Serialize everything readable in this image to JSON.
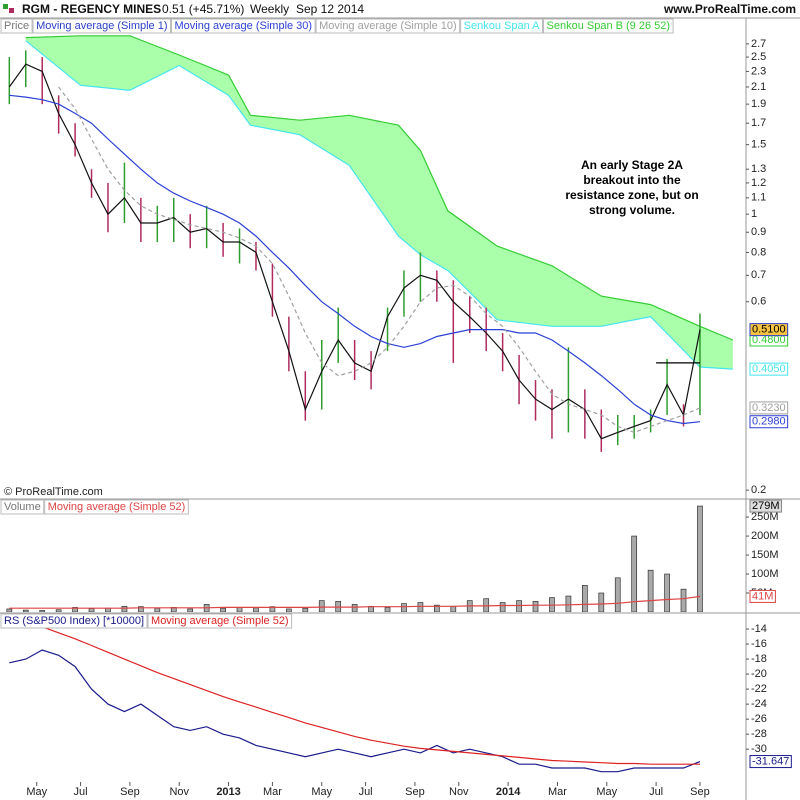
{
  "header": {
    "symbol": "RGM - REGENCY MINES",
    "quote": "0.51 (+45.71%)",
    "period": "Weekly",
    "date": "Sep 12 2014",
    "site": "www.ProRealTime.com",
    "copyright": "© ProRealTime.com"
  },
  "chart_data": [
    {
      "type": "line",
      "legend_title": "Price",
      "log": true,
      "x": [
        1,
        4,
        7,
        10,
        13,
        16,
        19,
        22,
        25,
        28,
        31,
        34,
        37,
        40,
        43,
        46,
        49,
        52,
        55,
        58,
        61,
        64,
        67,
        70,
        73,
        76,
        79,
        82,
        85,
        88,
        91,
        94,
        97,
        100,
        103,
        106,
        109,
        112,
        115,
        118,
        121,
        124,
        127
      ],
      "xlim": [
        -0.7,
        135.4
      ],
      "ylim": [
        0.191,
        3.14
      ],
      "yticks": [
        2.7,
        2.5,
        2.3,
        2.1,
        1.9,
        1.7,
        1.5,
        1.3,
        1.2,
        1.1,
        1,
        0.9,
        0.8,
        0.7,
        0.6,
        0.2
      ],
      "bars": {
        "up_color": "#2e9e2e",
        "down_color": "#b02a5e",
        "high": [
          2.5,
          2.6,
          2.5,
          2.0,
          1.7,
          1.3,
          1.2,
          1.35,
          1.1,
          1.05,
          1.1,
          1.0,
          1.05,
          0.95,
          0.92,
          0.85,
          0.75,
          0.55,
          0.4,
          0.48,
          0.58,
          0.48,
          0.45,
          0.58,
          0.72,
          0.8,
          0.72,
          0.68,
          0.62,
          0.58,
          0.5,
          0.44,
          0.38,
          0.36,
          0.46,
          0.36,
          0.32,
          0.31,
          0.31,
          0.32,
          0.43,
          0.33,
          0.56
        ],
        "low": [
          1.9,
          2.1,
          1.9,
          1.6,
          1.4,
          1.1,
          0.9,
          0.95,
          0.85,
          0.85,
          0.85,
          0.82,
          0.82,
          0.78,
          0.75,
          0.72,
          0.55,
          0.4,
          0.3,
          0.32,
          0.42,
          0.38,
          0.36,
          0.45,
          0.55,
          0.6,
          0.6,
          0.42,
          0.5,
          0.45,
          0.4,
          0.33,
          0.3,
          0.27,
          0.28,
          0.27,
          0.25,
          0.26,
          0.27,
          0.28,
          0.31,
          0.29,
          0.31
        ]
      },
      "series": [
        {
          "name": "Moving average (Simple 1)",
          "color": "#2b3fc9",
          "line_color": "#111111",
          "label_bg": "#f5c242",
          "last_label": "0.5100",
          "values": [
            2.1,
            2.4,
            2.3,
            1.8,
            1.5,
            1.2,
            1.0,
            1.1,
            0.95,
            0.95,
            0.98,
            0.9,
            0.92,
            0.85,
            0.85,
            0.8,
            0.6,
            0.45,
            0.32,
            0.4,
            0.48,
            0.42,
            0.4,
            0.55,
            0.65,
            0.7,
            0.68,
            0.6,
            0.55,
            0.5,
            0.45,
            0.38,
            0.34,
            0.32,
            0.34,
            0.32,
            0.27,
            0.28,
            0.29,
            0.3,
            0.37,
            0.31,
            0.51
          ]
        },
        {
          "name": "Moving average (Simple 30)",
          "color": "#2b3fd6",
          "last_label": "0.2980",
          "values": [
            2.0,
            1.98,
            1.95,
            1.9,
            1.8,
            1.7,
            1.55,
            1.42,
            1.3,
            1.2,
            1.13,
            1.08,
            1.04,
            1.0,
            0.95,
            0.88,
            0.8,
            0.73,
            0.66,
            0.6,
            0.56,
            0.52,
            0.49,
            0.47,
            0.46,
            0.47,
            0.49,
            0.5,
            0.51,
            0.51,
            0.51,
            0.5,
            0.5,
            0.48,
            0.45,
            0.42,
            0.39,
            0.36,
            0.33,
            0.31,
            0.3,
            0.295,
            0.298
          ]
        },
        {
          "name": "Moving average (Simple 10)",
          "color": "#a0a0a0",
          "dashed": true,
          "last_label": "0.3230",
          "values": [
            null,
            null,
            null,
            2.1,
            1.85,
            1.55,
            1.3,
            1.15,
            1.05,
            1.0,
            0.97,
            0.94,
            0.92,
            0.9,
            0.87,
            0.83,
            0.75,
            0.62,
            0.5,
            0.42,
            0.39,
            0.4,
            0.42,
            0.46,
            0.52,
            0.6,
            0.65,
            0.66,
            0.62,
            0.56,
            0.52,
            0.46,
            0.4,
            0.35,
            0.33,
            0.32,
            0.31,
            0.29,
            0.28,
            0.29,
            0.3,
            0.31,
            0.323
          ]
        }
      ],
      "cloud": {
        "fill": "#aaffaa",
        "x": [
          4,
          14,
          23,
          32,
          41,
          45,
          54,
          63,
          72,
          76,
          81,
          90,
          100,
          109,
          118,
          127,
          133
        ],
        "series": [
          {
            "name": "Senkou Span A",
            "color": "#44e4f0",
            "last_label": "0.4050",
            "values": [
              2.75,
              2.12,
              2.06,
              2.38,
              2.0,
              1.68,
              1.59,
              1.33,
              0.88,
              0.79,
              0.72,
              0.54,
              0.52,
              0.52,
              0.55,
              0.41,
              0.405
            ]
          },
          {
            "name": "Senkou Span B (9 26 52)",
            "color": "#33cc33",
            "last_label": "0.4800",
            "values": [
              2.8,
              2.83,
              2.83,
              2.53,
              2.25,
              1.78,
              1.73,
              1.78,
              1.68,
              1.45,
              1.02,
              0.83,
              0.74,
              0.62,
              0.59,
              0.52,
              0.48
            ]
          }
        ]
      },
      "resistance": {
        "value": 0.42,
        "x": [
          119,
          127
        ],
        "color": "#000000"
      },
      "annotation": [
        "An early Stage 2A",
        "breakout into the",
        "resistance zone, but on",
        "strong volume."
      ]
    },
    {
      "type": "bar",
      "legend_title": "Volume",
      "color": "#aaaaaa",
      "ylim": [
        0,
        295000000
      ],
      "yticks": [
        {
          "value": 250000000,
          "label": "250M"
        },
        {
          "value": 200000000,
          "label": "200M"
        },
        {
          "value": 150000000,
          "label": "150M"
        },
        {
          "value": 100000000,
          "label": "100M"
        },
        {
          "value": 50000000,
          "label": "50M"
        }
      ],
      "last_label": "279M",
      "values": [
        8000000,
        5000000,
        4000000,
        6000000,
        12000000,
        9000000,
        10000000,
        15000000,
        14000000,
        10000000,
        12000000,
        8000000,
        20000000,
        10000000,
        12000000,
        11000000,
        14000000,
        8000000,
        10000000,
        30000000,
        28000000,
        20000000,
        15000000,
        12000000,
        22000000,
        25000000,
        18000000,
        15000000,
        30000000,
        35000000,
        25000000,
        30000000,
        28000000,
        38000000,
        42000000,
        70000000,
        50000000,
        90000000,
        200000000,
        110000000,
        100000000,
        60000000,
        279000000
      ],
      "series": [
        {
          "name": "Moving average (Simple 52)",
          "color": "#dd4444",
          "last_label": "41M",
          "values": [
            10000000,
            10000000,
            10000000,
            10000000,
            10000000,
            10000000,
            10000000,
            10000000,
            11000000,
            11000000,
            11000000,
            11000000,
            11000000,
            12000000,
            12000000,
            12000000,
            12000000,
            12000000,
            12000000,
            13000000,
            13000000,
            13000000,
            14000000,
            14000000,
            14000000,
            15000000,
            15000000,
            15000000,
            16000000,
            16000000,
            17000000,
            17000000,
            18000000,
            18000000,
            19000000,
            20000000,
            21000000,
            23000000,
            27000000,
            30000000,
            33000000,
            35000000,
            41000000
          ]
        }
      ]
    },
    {
      "type": "line",
      "ylim": [
        -36.1,
        -12
      ],
      "yticks": [
        -14,
        -16,
        -18,
        -20,
        -22,
        -24,
        -26,
        -28,
        -30
      ],
      "xticks": [
        {
          "value": 6,
          "label": "May"
        },
        {
          "value": 14,
          "label": "Jul"
        },
        {
          "value": 23,
          "label": "Sep"
        },
        {
          "value": 32,
          "label": "Nov"
        },
        {
          "value": 41,
          "label": "2013"
        },
        {
          "value": 49,
          "label": "Mar"
        },
        {
          "value": 58,
          "label": "May"
        },
        {
          "value": 66,
          "label": "Jul"
        },
        {
          "value": 75,
          "label": "Sep"
        },
        {
          "value": 83,
          "label": "Nov"
        },
        {
          "value": 92,
          "label": "2014"
        },
        {
          "value": 101,
          "label": "Mar"
        },
        {
          "value": 110,
          "label": "May"
        },
        {
          "value": 119,
          "label": "Jul"
        },
        {
          "value": 127,
          "label": "Sep"
        }
      ],
      "series": [
        {
          "name": "RS (S&P500 Index) [*10000]",
          "color": "#1a1a8c",
          "last_label": "-31.647",
          "values": [
            -18.5,
            -18,
            -16.8,
            -17.5,
            -19,
            -22,
            -24,
            -25,
            -24,
            -25.5,
            -27,
            -27.5,
            -27,
            -28,
            -28.5,
            -29.5,
            -30,
            -30.5,
            -31,
            -30.5,
            -30,
            -30.5,
            -31,
            -30.5,
            -30,
            -30.5,
            -29.5,
            -30.5,
            -30,
            -30.5,
            -31,
            -32,
            -32,
            -32.5,
            -32.5,
            -32.5,
            -33,
            -33,
            -32.5,
            -32.5,
            -32.5,
            -32.5,
            -31.647
          ]
        },
        {
          "name": "Moving average (Simple 52)",
          "color": "#dd2222",
          "values": [
            -12.3,
            -13,
            -13.7,
            -14.5,
            -15.3,
            -16.2,
            -17.1,
            -18,
            -18.9,
            -19.8,
            -20.6,
            -21.4,
            -22.2,
            -23,
            -23.7,
            -24.4,
            -25.1,
            -25.8,
            -26.5,
            -27.1,
            -27.7,
            -28.3,
            -28.8,
            -29.2,
            -29.6,
            -29.9,
            -30.1,
            -30.3,
            -30.5,
            -30.7,
            -30.9,
            -31.1,
            -31.3,
            -31.5,
            -31.6,
            -31.7,
            -31.8,
            -31.9,
            -31.9,
            -32,
            -32,
            -32,
            -32
          ]
        }
      ]
    }
  ]
}
